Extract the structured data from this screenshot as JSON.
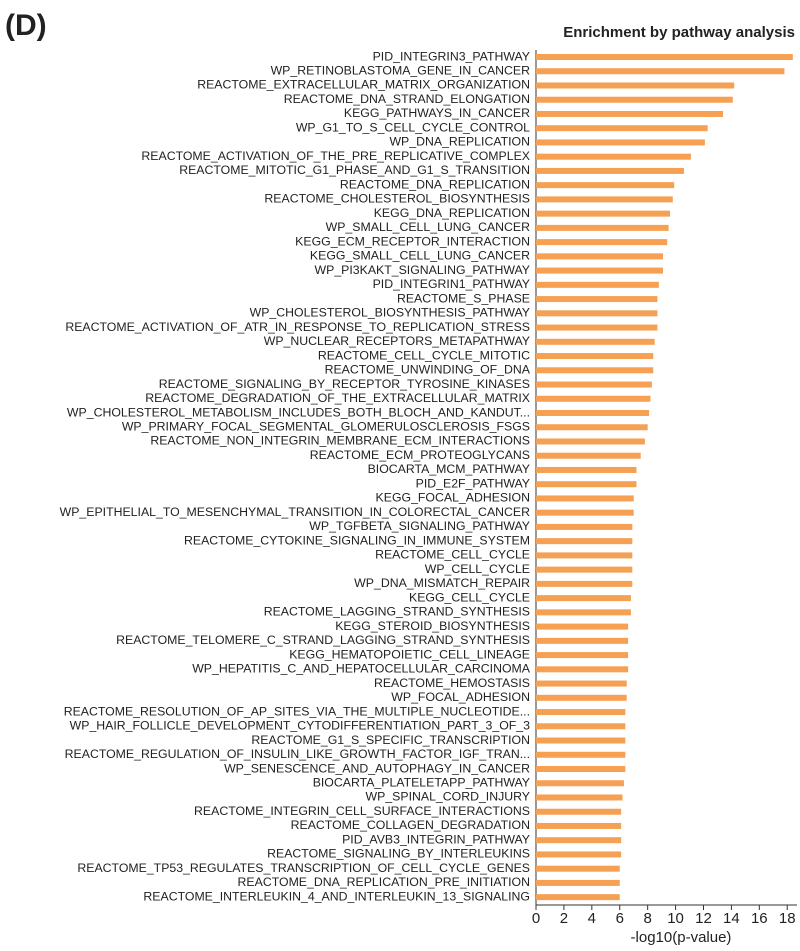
{
  "chart_data": {
    "type": "hbar",
    "panel_label": "(D)",
    "title": "Enrichment by pathway analysis",
    "x_label": "-log10(p-value)",
    "color": "#f5a052",
    "categories": [
      "PID_INTEGRIN3_PATHWAY",
      "WP_RETINOBLASTOMA_GENE_IN_CANCER",
      "REACTOME_EXTRACELLULAR_MATRIX_ORGANIZATION",
      "REACTOME_DNA_STRAND_ELONGATION",
      "KEGG_PATHWAYS_IN_CANCER",
      "WP_G1_TO_S_CELL_CYCLE_CONTROL",
      "WP_DNA_REPLICATION",
      "REACTOME_ACTIVATION_OF_THE_PRE_REPLICATIVE_COMPLEX",
      "REACTOME_MITOTIC_G1_PHASE_AND_G1_S_TRANSITION",
      "REACTOME_DNA_REPLICATION",
      "REACTOME_CHOLESTEROL_BIOSYNTHESIS",
      "KEGG_DNA_REPLICATION",
      "WP_SMALL_CELL_LUNG_CANCER",
      "KEGG_ECM_RECEPTOR_INTERACTION",
      "KEGG_SMALL_CELL_LUNG_CANCER",
      "WP_PI3KAKT_SIGNALING_PATHWAY",
      "PID_INTEGRIN1_PATHWAY",
      "REACTOME_S_PHASE",
      "WP_CHOLESTEROL_BIOSYNTHESIS_PATHWAY",
      "REACTOME_ACTIVATION_OF_ATR_IN_RESPONSE_TO_REPLICATION_STRESS",
      "WP_NUCLEAR_RECEPTORS_METAPATHWAY",
      "REACTOME_CELL_CYCLE_MITOTIC",
      "REACTOME_UNWINDING_OF_DNA",
      "REACTOME_SIGNALING_BY_RECEPTOR_TYROSINE_KINASES",
      "REACTOME_DEGRADATION_OF_THE_EXTRACELLULAR_MATRIX",
      "WP_CHOLESTEROL_METABOLISM_INCLUDES_BOTH_BLOCH_AND_KANDUT...",
      "WP_PRIMARY_FOCAL_SEGMENTAL_GLOMERULOSCLEROSIS_FSGS",
      "REACTOME_NON_INTEGRIN_MEMBRANE_ECM_INTERACTIONS",
      "REACTOME_ECM_PROTEOGLYCANS",
      "BIOCARTA_MCM_PATHWAY",
      "PID_E2F_PATHWAY",
      "KEGG_FOCAL_ADHESION",
      "WP_EPITHELIAL_TO_MESENCHYMAL_TRANSITION_IN_COLORECTAL_CANCER",
      "WP_TGFBETA_SIGNALING_PATHWAY",
      "REACTOME_CYTOKINE_SIGNALING_IN_IMMUNE_SYSTEM",
      "REACTOME_CELL_CYCLE",
      "WP_CELL_CYCLE",
      "WP_DNA_MISMATCH_REPAIR",
      "KEGG_CELL_CYCLE",
      "REACTOME_LAGGING_STRAND_SYNTHESIS",
      "KEGG_STEROID_BIOSYNTHESIS",
      "REACTOME_TELOMERE_C_STRAND_LAGGING_STRAND_SYNTHESIS",
      "KEGG_HEMATOPOIETIC_CELL_LINEAGE",
      "WP_HEPATITIS_C_AND_HEPATOCELLULAR_CARCINOMA",
      "REACTOME_HEMOSTASIS",
      "WP_FOCAL_ADHESION",
      "REACTOME_RESOLUTION_OF_AP_SITES_VIA_THE_MULTIPLE_NUCLEOTIDE...",
      "WP_HAIR_FOLLICLE_DEVELOPMENT_CYTODIFFERENTIATION_PART_3_OF_3",
      "REACTOME_G1_S_SPECIFIC_TRANSCRIPTION",
      "REACTOME_REGULATION_OF_INSULIN_LIKE_GROWTH_FACTOR_IGF_TRAN...",
      "WP_SENESCENCE_AND_AUTOPHAGY_IN_CANCER",
      "BIOCARTA_PLATELETAPP_PATHWAY",
      "WP_SPINAL_CORD_INJURY",
      "REACTOME_INTEGRIN_CELL_SURFACE_INTERACTIONS",
      "REACTOME_COLLAGEN_DEGRADATION",
      "PID_AVB3_INTEGRIN_PATHWAY",
      "REACTOME_SIGNALING_BY_INTERLEUKINS",
      "REACTOME_TP53_REGULATES_TRANSCRIPTION_OF_CELL_CYCLE_GENES",
      "REACTOME_DNA_REPLICATION_PRE_INITIATION",
      "REACTOME_INTERLEUKIN_4_AND_INTERLEUKIN_13_SIGNALING"
    ],
    "values": [
      18.4,
      17.8,
      14.2,
      14.1,
      13.4,
      12.3,
      12.1,
      11.1,
      10.6,
      9.9,
      9.8,
      9.6,
      9.5,
      9.4,
      9.1,
      9.1,
      8.8,
      8.7,
      8.7,
      8.7,
      8.5,
      8.4,
      8.4,
      8.3,
      8.2,
      8.1,
      8.0,
      7.8,
      7.5,
      7.2,
      7.2,
      7.0,
      7.0,
      6.9,
      6.9,
      6.9,
      6.9,
      6.9,
      6.8,
      6.8,
      6.6,
      6.6,
      6.6,
      6.6,
      6.5,
      6.5,
      6.4,
      6.4,
      6.4,
      6.4,
      6.4,
      6.3,
      6.2,
      6.1,
      6.1,
      6.1,
      6.1,
      6.0,
      6.0,
      6.0
    ],
    "xlim": [
      0,
      18.7
    ],
    "xticks": [
      0,
      2,
      4,
      6,
      8,
      10,
      12,
      14,
      16,
      18
    ]
  }
}
